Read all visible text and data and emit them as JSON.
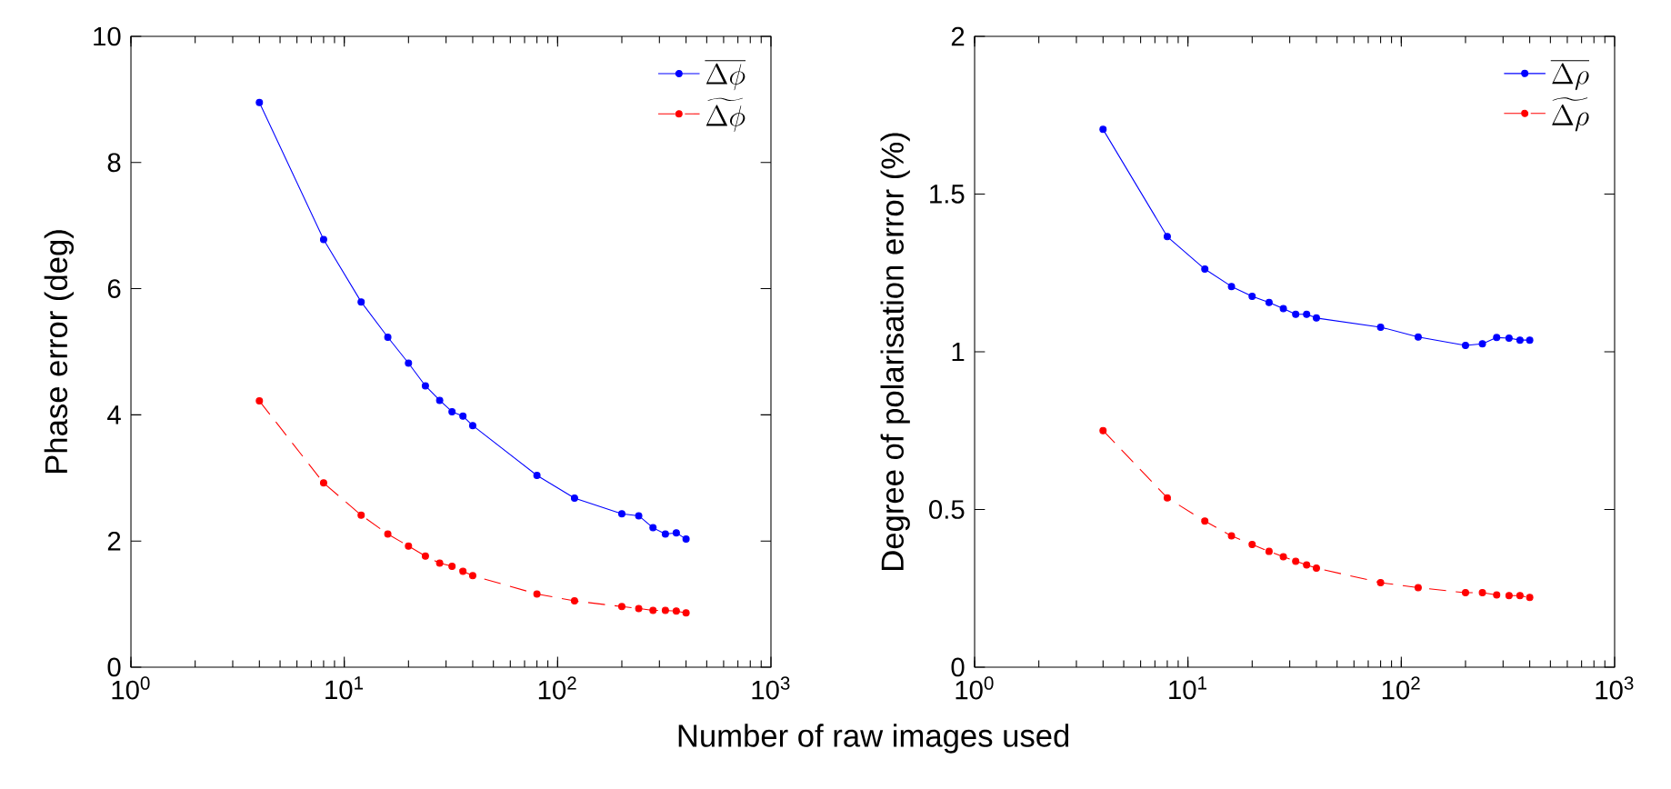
{
  "chart_data": [
    {
      "type": "line",
      "xlabel": "Number of raw images used",
      "ylabel": "Phase error (deg)",
      "log": "x",
      "xlim": [
        1,
        1000
      ],
      "xticks": [
        {
          "value": 1,
          "label": "10$^{0}$"
        },
        {
          "value": 10,
          "label": "10$^{1}$"
        },
        {
          "value": 100,
          "label": "10$^{2}$"
        },
        {
          "value": 1000,
          "label": "10$^{3}$"
        }
      ],
      "ylim": [
        0,
        10
      ],
      "yticks": [
        0,
        2,
        4,
        6,
        8,
        10
      ],
      "legend": "top right",
      "grid": false,
      "marker": "circle",
      "x": [
        4,
        8,
        12,
        16,
        20,
        24,
        28,
        32,
        36,
        40,
        80,
        120,
        200,
        240,
        280,
        320,
        360,
        400
      ],
      "series": [
        {
          "name": "\\overline{\\Delta\\phi}",
          "color": "#0000ff",
          "line_style": "solid",
          "values": [
            8.95,
            6.78,
            5.79,
            5.23,
            4.82,
            4.46,
            4.23,
            4.05,
            3.98,
            3.83,
            3.04,
            2.68,
            2.43,
            2.4,
            2.21,
            2.11,
            2.13,
            2.03
          ]
        },
        {
          "name": "\\widetilde{\\Delta\\phi}",
          "color": "#ff0000",
          "line_style": "dashed",
          "values": [
            4.22,
            2.92,
            2.41,
            2.11,
            1.92,
            1.76,
            1.65,
            1.6,
            1.52,
            1.45,
            1.16,
            1.05,
            0.96,
            0.93,
            0.9,
            0.9,
            0.89,
            0.86
          ]
        }
      ]
    },
    {
      "type": "line",
      "ylabel": "Degree of polarisation error (%)",
      "log": "x",
      "xlim": [
        1,
        1000
      ],
      "xticks": [
        {
          "value": 1,
          "label": "10$^{0}$"
        },
        {
          "value": 10,
          "label": "10$^{1}$"
        },
        {
          "value": 100,
          "label": "10$^{2}$"
        },
        {
          "value": 1000,
          "label": "10$^{3}$"
        }
      ],
      "ylim": [
        0,
        2
      ],
      "yticks": [
        0,
        0.5,
        1,
        1.5,
        2
      ],
      "legend": "top right",
      "grid": false,
      "marker": "circle",
      "x": [
        4,
        8,
        12,
        16,
        20,
        24,
        28,
        32,
        36,
        40,
        80,
        120,
        200,
        240,
        280,
        320,
        360,
        400
      ],
      "series": [
        {
          "name": "\\overline{\\Delta\\rho}",
          "color": "#0000ff",
          "line_style": "solid",
          "values": [
            1.705,
            1.365,
            1.262,
            1.207,
            1.176,
            1.156,
            1.137,
            1.119,
            1.119,
            1.107,
            1.078,
            1.047,
            1.02,
            1.025,
            1.045,
            1.043,
            1.037,
            1.037
          ]
        },
        {
          "name": "\\widetilde{\\Delta\\rho}",
          "color": "#ff0000",
          "line_style": "dashed",
          "values": [
            0.75,
            0.537,
            0.463,
            0.416,
            0.389,
            0.367,
            0.35,
            0.336,
            0.324,
            0.314,
            0.268,
            0.252,
            0.236,
            0.236,
            0.229,
            0.227,
            0.227,
            0.221
          ]
        }
      ]
    }
  ]
}
